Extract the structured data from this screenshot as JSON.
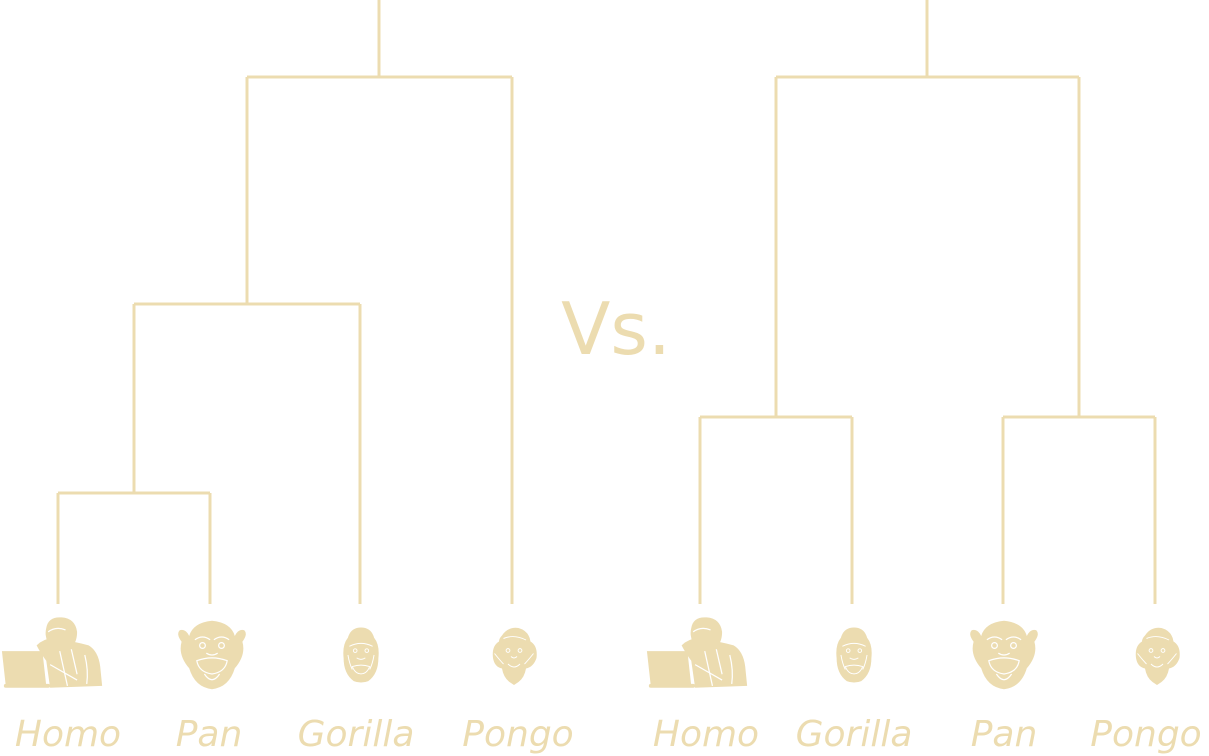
{
  "colors": {
    "tree": "#ecdcb0",
    "background": "#ffffff"
  },
  "vs_label": "Vs.",
  "left_tree": {
    "leaves": [
      {
        "label": "Homo",
        "icon": "human-at-laptop-icon"
      },
      {
        "label": "Pan",
        "icon": "chimpanzee-icon"
      },
      {
        "label": "Gorilla",
        "icon": "gorilla-icon"
      },
      {
        "label": "Pongo",
        "icon": "orangutan-icon"
      }
    ],
    "topology": "(((Homo,Pan),Gorilla),Pongo)"
  },
  "right_tree": {
    "leaves": [
      {
        "label": "Homo",
        "icon": "human-at-laptop-icon"
      },
      {
        "label": "Gorilla",
        "icon": "gorilla-icon"
      },
      {
        "label": "Pan",
        "icon": "chimpanzee-icon"
      },
      {
        "label": "Pongo",
        "icon": "orangutan-icon"
      }
    ],
    "topology": "((Homo,Gorilla),(Pan,Pongo))"
  }
}
